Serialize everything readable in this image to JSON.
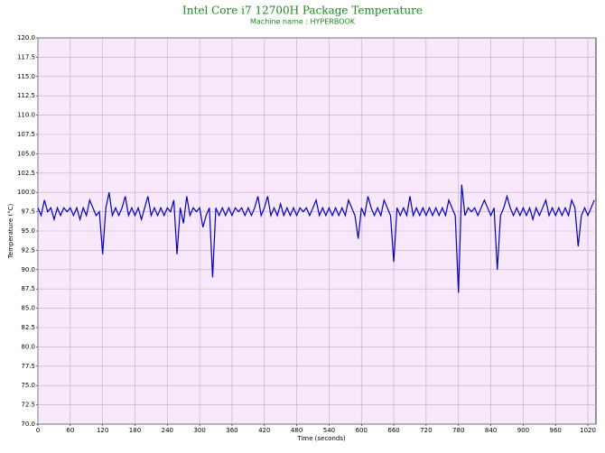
{
  "chart_data": {
    "type": "line",
    "title": "Intel Core i7 12700H Package Temperature",
    "subtitle": "Machine name : HYPERBOOK",
    "x_label": "Time (seconds)",
    "y_label": "Temperature (°C)",
    "xlim": [
      0,
      1035
    ],
    "xticks": [
      0,
      60,
      120,
      180,
      240,
      300,
      360,
      420,
      480,
      540,
      600,
      660,
      720,
      780,
      840,
      900,
      960,
      1020
    ],
    "ylim": [
      70,
      120
    ],
    "yticks": [
      {
        "value": 70,
        "label": "70.0"
      },
      {
        "value": 72.5,
        "label": "72.5"
      },
      {
        "value": 75,
        "label": "75.0"
      },
      {
        "value": 77.5,
        "label": "77.5"
      },
      {
        "value": 80,
        "label": "80.0"
      },
      {
        "value": 82.5,
        "label": "82.5"
      },
      {
        "value": 85,
        "label": "85.0"
      },
      {
        "value": 87.5,
        "label": "87.5"
      },
      {
        "value": 90,
        "label": "90.0"
      },
      {
        "value": 92.5,
        "label": "92.5"
      },
      {
        "value": 95,
        "label": "95.0"
      },
      {
        "value": 97.5,
        "label": "97.5"
      },
      {
        "value": 100,
        "label": "100.0"
      },
      {
        "value": 102.5,
        "label": "102.5"
      },
      {
        "value": 105,
        "label": "105.0"
      },
      {
        "value": 107.5,
        "label": "107.5"
      },
      {
        "value": 110,
        "label": "110.0"
      },
      {
        "value": 112.5,
        "label": "112.5"
      },
      {
        "value": 115,
        "label": "115.0"
      },
      {
        "value": 117.5,
        "label": "117.5"
      },
      {
        "value": 120,
        "label": "120.0"
      }
    ],
    "grid": true,
    "color": "#0000c0",
    "x": [
      0,
      6,
      12,
      18,
      24,
      30,
      36,
      42,
      48,
      54,
      60,
      66,
      72,
      78,
      84,
      90,
      96,
      102,
      108,
      114,
      120,
      126,
      132,
      138,
      144,
      150,
      156,
      162,
      168,
      174,
      180,
      186,
      192,
      198,
      204,
      210,
      216,
      222,
      228,
      234,
      240,
      246,
      252,
      258,
      264,
      270,
      276,
      282,
      288,
      294,
      300,
      306,
      312,
      318,
      324,
      330,
      336,
      342,
      348,
      354,
      360,
      366,
      372,
      378,
      384,
      390,
      396,
      402,
      408,
      414,
      420,
      426,
      432,
      438,
      444,
      450,
      456,
      462,
      468,
      474,
      480,
      486,
      492,
      498,
      504,
      510,
      516,
      522,
      528,
      534,
      540,
      546,
      552,
      558,
      564,
      570,
      576,
      582,
      588,
      594,
      600,
      606,
      612,
      618,
      624,
      630,
      636,
      642,
      648,
      654,
      660,
      666,
      672,
      678,
      684,
      690,
      696,
      702,
      708,
      714,
      720,
      726,
      732,
      738,
      744,
      750,
      756,
      762,
      768,
      774,
      780,
      786,
      792,
      798,
      804,
      810,
      816,
      822,
      828,
      834,
      840,
      846,
      852,
      858,
      864,
      870,
      876,
      882,
      888,
      894,
      900,
      906,
      912,
      918,
      924,
      930,
      936,
      942,
      948,
      954,
      960,
      966,
      972,
      978,
      984,
      990,
      996,
      1002,
      1008,
      1014,
      1020,
      1026,
      1032
    ],
    "values": [
      98,
      97,
      99,
      97.5,
      98,
      96.5,
      98,
      97,
      98,
      97.5,
      98,
      97,
      98,
      96.5,
      98,
      97,
      99,
      98,
      97,
      97.5,
      92,
      98,
      100,
      97,
      98,
      97,
      98,
      99.5,
      97,
      98,
      97,
      98,
      96.5,
      98,
      99.5,
      97,
      98,
      97,
      98,
      97,
      98,
      97.5,
      99,
      92,
      98,
      96,
      99.5,
      97,
      98,
      97.5,
      98,
      95.5,
      97,
      98,
      89,
      98,
      97,
      98,
      97,
      98,
      97,
      98,
      97.5,
      98,
      97,
      98,
      97,
      98,
      99.5,
      97,
      98,
      99.5,
      97,
      98,
      97,
      98.5,
      97,
      98,
      97,
      98,
      97,
      98,
      97.5,
      98,
      97,
      98,
      99,
      97,
      98,
      97,
      98,
      97,
      98,
      97,
      98,
      97,
      99,
      98,
      97,
      94,
      98,
      97,
      99.5,
      98,
      97,
      98,
      97,
      99,
      98,
      97,
      91,
      98,
      97,
      98,
      97,
      99.5,
      97,
      98,
      97,
      98,
      97,
      98,
      97,
      98,
      97,
      98,
      97,
      99,
      98,
      97,
      87,
      101,
      97,
      98,
      97.5,
      98,
      97,
      98,
      99,
      98,
      97,
      98,
      90,
      97,
      98,
      99.5,
      98,
      97,
      98,
      97,
      98,
      97,
      98,
      96.5,
      98,
      97,
      98,
      99,
      97,
      98,
      97,
      98,
      97,
      98,
      97,
      99,
      98,
      93,
      97,
      98,
      97,
      98,
      99
    ]
  }
}
